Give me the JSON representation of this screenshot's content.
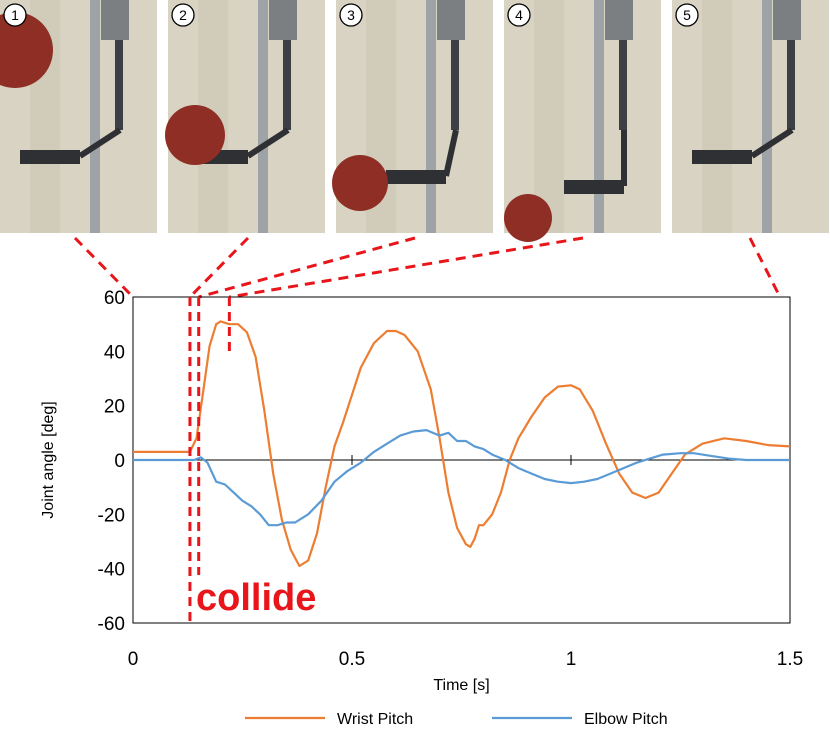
{
  "colors": {
    "wrist": "#ED7D31",
    "elbow": "#5B9BD5",
    "marker": "#E8161A",
    "photo_wall": "#D8D3C2",
    "photo_frame": "#9EA3A8",
    "ball": "#8E2E24"
  },
  "photos": [
    {
      "number": "1",
      "time_s": 0.0
    },
    {
      "number": "2",
      "time_s": 0.13
    },
    {
      "number": "3",
      "time_s": 0.15
    },
    {
      "number": "4",
      "time_s": 0.22
    },
    {
      "number": "5",
      "time_s": 1.5
    }
  ],
  "collide_label": "collide",
  "markers_s": [
    0.13,
    0.15,
    0.22
  ],
  "chart_data": {
    "type": "line",
    "xlabel": "Time [s]",
    "ylabel": "Joint angle [deg]",
    "xlim": [
      0,
      1.5
    ],
    "ylim": [
      -60,
      60
    ],
    "x_ticks": [
      "0",
      "0.5",
      "1",
      "1.5"
    ],
    "y_ticks": [
      "60",
      "40",
      "20",
      "0",
      "-20",
      "-40",
      "-60"
    ],
    "legend_position": "bottom",
    "series": [
      {
        "name": "Wrist Pitch",
        "color": "#ED7D31",
        "points": [
          [
            0,
            3
          ],
          [
            0.13,
            3
          ],
          [
            0.145,
            8
          ],
          [
            0.16,
            25
          ],
          [
            0.175,
            42
          ],
          [
            0.19,
            50
          ],
          [
            0.2,
            51
          ],
          [
            0.22,
            50
          ],
          [
            0.24,
            50
          ],
          [
            0.26,
            47
          ],
          [
            0.28,
            38
          ],
          [
            0.3,
            18
          ],
          [
            0.32,
            -5
          ],
          [
            0.34,
            -22
          ],
          [
            0.36,
            -33
          ],
          [
            0.38,
            -39
          ],
          [
            0.4,
            -37
          ],
          [
            0.42,
            -27
          ],
          [
            0.44,
            -10
          ],
          [
            0.46,
            5
          ],
          [
            0.48,
            14
          ],
          [
            0.5,
            24
          ],
          [
            0.52,
            34
          ],
          [
            0.55,
            43
          ],
          [
            0.58,
            47.5
          ],
          [
            0.6,
            47.5
          ],
          [
            0.62,
            46
          ],
          [
            0.65,
            40
          ],
          [
            0.68,
            26
          ],
          [
            0.7,
            8
          ],
          [
            0.72,
            -12
          ],
          [
            0.74,
            -25
          ],
          [
            0.76,
            -31
          ],
          [
            0.77,
            -32
          ],
          [
            0.78,
            -29
          ],
          [
            0.79,
            -24
          ],
          [
            0.8,
            -24
          ],
          [
            0.82,
            -20
          ],
          [
            0.84,
            -12
          ],
          [
            0.86,
            0
          ],
          [
            0.88,
            8
          ],
          [
            0.91,
            16
          ],
          [
            0.94,
            23
          ],
          [
            0.97,
            27
          ],
          [
            1.0,
            27.5
          ],
          [
            1.02,
            26
          ],
          [
            1.05,
            18
          ],
          [
            1.08,
            6
          ],
          [
            1.11,
            -5
          ],
          [
            1.14,
            -12
          ],
          [
            1.17,
            -14
          ],
          [
            1.2,
            -12
          ],
          [
            1.23,
            -5
          ],
          [
            1.26,
            2
          ],
          [
            1.3,
            6
          ],
          [
            1.35,
            8
          ],
          [
            1.4,
            7
          ],
          [
            1.45,
            5.5
          ],
          [
            1.5,
            5
          ]
        ]
      },
      {
        "name": "Elbow Pitch",
        "color": "#5B9BD5",
        "points": [
          [
            0,
            0
          ],
          [
            0.14,
            0
          ],
          [
            0.155,
            1
          ],
          [
            0.17,
            -1
          ],
          [
            0.19,
            -8
          ],
          [
            0.21,
            -9
          ],
          [
            0.23,
            -12
          ],
          [
            0.25,
            -15
          ],
          [
            0.27,
            -17
          ],
          [
            0.29,
            -20
          ],
          [
            0.31,
            -24
          ],
          [
            0.33,
            -24
          ],
          [
            0.35,
            -23
          ],
          [
            0.37,
            -23
          ],
          [
            0.4,
            -20
          ],
          [
            0.43,
            -15
          ],
          [
            0.46,
            -8
          ],
          [
            0.49,
            -4
          ],
          [
            0.52,
            -1
          ],
          [
            0.55,
            3
          ],
          [
            0.58,
            6
          ],
          [
            0.61,
            9
          ],
          [
            0.64,
            10.5
          ],
          [
            0.67,
            11
          ],
          [
            0.7,
            9
          ],
          [
            0.72,
            10
          ],
          [
            0.74,
            7
          ],
          [
            0.76,
            7
          ],
          [
            0.78,
            5
          ],
          [
            0.8,
            4
          ],
          [
            0.82,
            2
          ],
          [
            0.85,
            0
          ],
          [
            0.88,
            -3
          ],
          [
            0.91,
            -5
          ],
          [
            0.94,
            -7
          ],
          [
            0.97,
            -8
          ],
          [
            1.0,
            -8.5
          ],
          [
            1.03,
            -8
          ],
          [
            1.06,
            -7
          ],
          [
            1.09,
            -5
          ],
          [
            1.12,
            -3
          ],
          [
            1.15,
            -1
          ],
          [
            1.18,
            0.5
          ],
          [
            1.21,
            2
          ],
          [
            1.25,
            2.5
          ],
          [
            1.28,
            2.5
          ],
          [
            1.32,
            1.5
          ],
          [
            1.36,
            0.5
          ],
          [
            1.4,
            0
          ],
          [
            1.45,
            0
          ],
          [
            1.5,
            0
          ]
        ]
      }
    ]
  }
}
